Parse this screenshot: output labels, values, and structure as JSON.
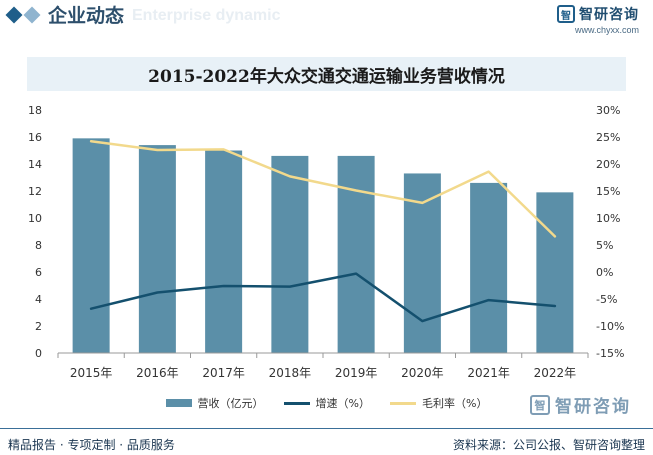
{
  "header": {
    "section_title": "企业动态",
    "section_subtitle": "Enterprise dynamic",
    "brand_name": "智研咨询",
    "brand_url": "www.chyxx.com",
    "brand_logo_char": "智"
  },
  "footer": {
    "left_text": "精品报告 · 专项定制 · 品质服务",
    "right_text": "资料来源：公司公报、智研咨询整理",
    "watermark_brand": "智研咨询"
  },
  "colors": {
    "bar": "#5b8fa8",
    "growth_line": "#14506e",
    "margin_line": "#f2d98c",
    "title_band": "#e8f1f7"
  },
  "chart_data": {
    "type": "bar",
    "title": "2015-2022年大众交通交通运输业务营收情况",
    "categories": [
      "2015年",
      "2016年",
      "2017年",
      "2018年",
      "2019年",
      "2020年",
      "2021年",
      "2022年"
    ],
    "series": [
      {
        "name": "营收（亿元）",
        "type": "bar",
        "axis": "left",
        "values": [
          15.9,
          15.4,
          15.0,
          14.6,
          14.6,
          13.3,
          12.6,
          11.9
        ]
      },
      {
        "name": "增速（%）",
        "type": "line",
        "axis": "right",
        "values": [
          -6.8,
          -3.8,
          -2.6,
          -2.7,
          -0.3,
          -9.1,
          -5.2,
          -6.3
        ]
      },
      {
        "name": "毛利率（%）",
        "type": "line",
        "axis": "right",
        "values": [
          24.2,
          22.6,
          22.7,
          17.7,
          15.1,
          12.8,
          18.6,
          6.6
        ]
      }
    ],
    "y_left": {
      "min": 0,
      "max": 18,
      "step": 2,
      "ticks": [
        "0",
        "2",
        "4",
        "6",
        "8",
        "10",
        "12",
        "14",
        "16",
        "18"
      ]
    },
    "y_right": {
      "min": -15,
      "max": 30,
      "step": 5,
      "ticks": [
        "-15%",
        "-10%",
        "-5%",
        "0%",
        "5%",
        "10%",
        "15%",
        "20%",
        "25%",
        "30%"
      ]
    },
    "grid": false,
    "legend_position": "bottom"
  }
}
